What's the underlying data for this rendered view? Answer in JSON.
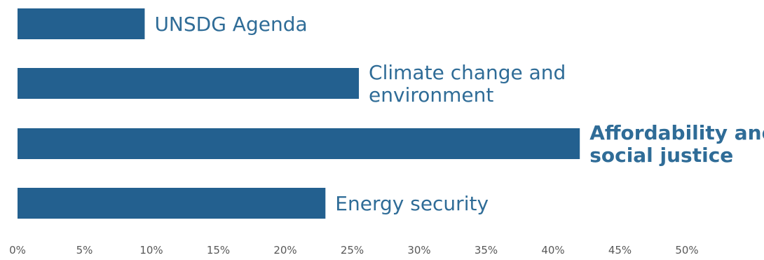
{
  "chart_data": {
    "type": "bar",
    "orientation": "horizontal",
    "categories": [
      "UNSDG Agenda",
      "Climate change and environment",
      "Affordability and social justice",
      "Energy security"
    ],
    "label_lines": [
      [
        "UNSDG Agenda"
      ],
      [
        "Climate change and",
        "environment"
      ],
      [
        "Affordability and",
        "social justice"
      ],
      [
        "Energy security"
      ]
    ],
    "highlighted": [
      false,
      false,
      true,
      false
    ],
    "values": [
      9.5,
      25.5,
      42,
      23
    ],
    "value_unit": "%",
    "xlim": [
      0,
      55
    ],
    "xticks": [
      "0%",
      "5%",
      "10%",
      "15%",
      "20%",
      "25%",
      "30%",
      "35%",
      "40%",
      "45%",
      "50%"
    ],
    "grid": false,
    "legend": "none",
    "colors": {
      "bar": "#23608F",
      "label": "#2F6C97",
      "tick": "#595959"
    }
  }
}
